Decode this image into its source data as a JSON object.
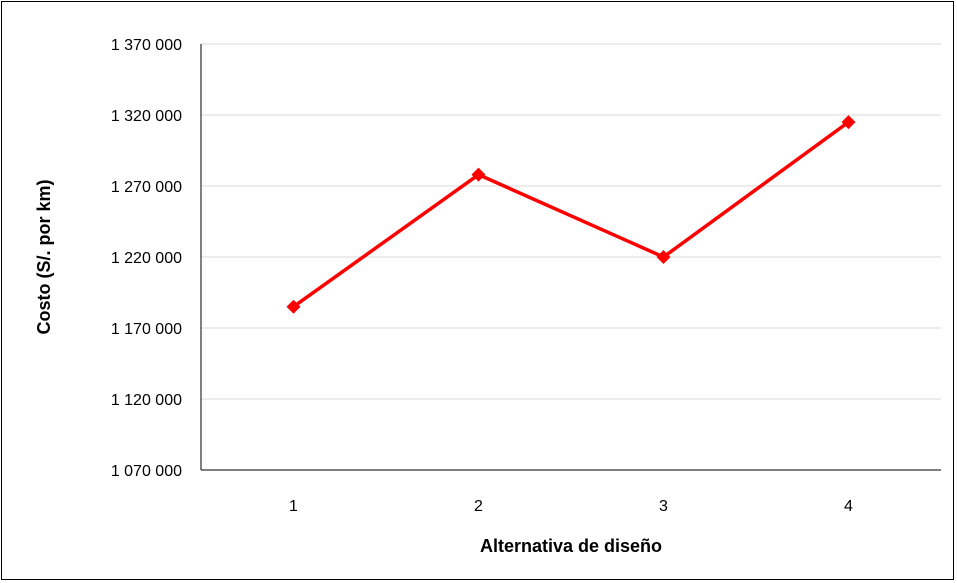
{
  "chart_data": {
    "type": "line",
    "x": [
      "1",
      "2",
      "3",
      "4"
    ],
    "series": [
      {
        "values": [
          1185000,
          1278000,
          1220000,
          1315000
        ]
      }
    ],
    "xlabel": "Alternativa de diseño",
    "ylabel": "Costo (S/. por km)",
    "ylim": [
      1070000,
      1370000
    ],
    "yticks": [
      1070000,
      1120000,
      1170000,
      1220000,
      1270000,
      1320000,
      1370000
    ],
    "ytick_labels": [
      "1 070 000",
      "1 120 000",
      "1 170 000",
      "1 220 000",
      "1 270 000",
      "1 320 000",
      "1 370 000"
    ],
    "grid": true,
    "legend": "none",
    "colors": {
      "series": "#ff0000",
      "grid": "#d9d9d9",
      "axis": "#000000"
    },
    "marker": "diamond"
  }
}
